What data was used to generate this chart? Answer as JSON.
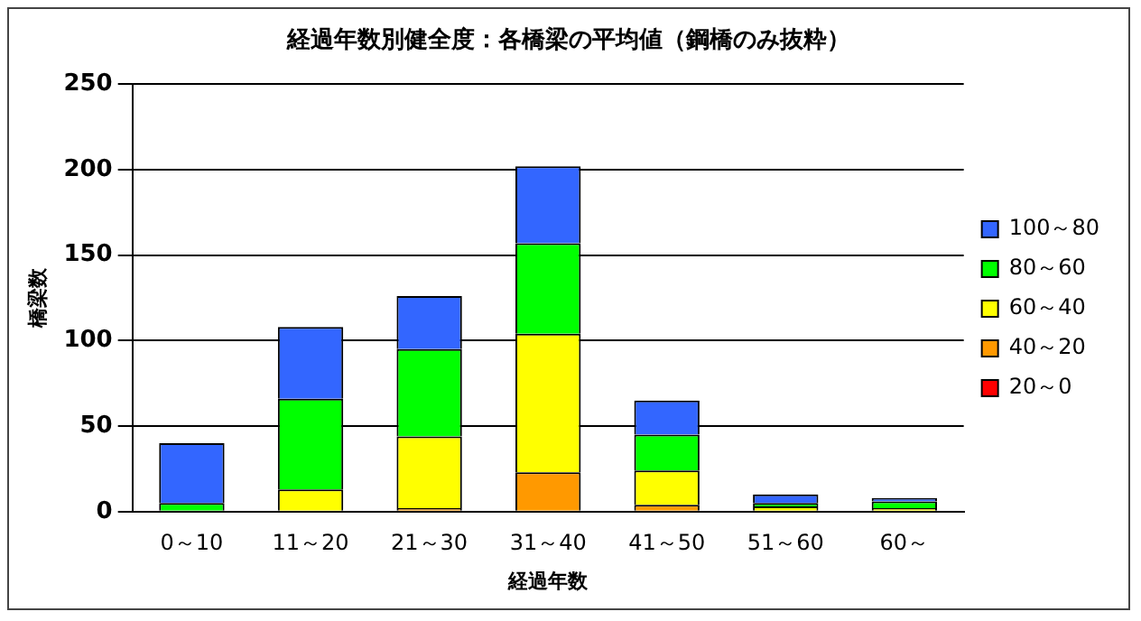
{
  "chart_data": {
    "type": "bar",
    "stacked": true,
    "title": "経過年数別健全度：各橋梁の平均値（鋼橋のみ抜粋）",
    "xlabel": "経過年数",
    "ylabel": "橋梁数",
    "categories": [
      "0～10",
      "11～20",
      "21～30",
      "31～40",
      "41～50",
      "51～60",
      "60～"
    ],
    "series": [
      {
        "name": "20～0",
        "color": "#ff0000",
        "values": [
          0,
          0,
          0,
          0,
          0,
          0,
          0
        ]
      },
      {
        "name": "40～20",
        "color": "#ff9900",
        "values": [
          0,
          0,
          2,
          23,
          4,
          0,
          0
        ]
      },
      {
        "name": "60～40",
        "color": "#ffff00",
        "values": [
          0,
          13,
          42,
          81,
          20,
          3,
          2
        ]
      },
      {
        "name": "80～60",
        "color": "#00ff00",
        "values": [
          5,
          53,
          51,
          53,
          21,
          2,
          4
        ]
      },
      {
        "name": "100～80",
        "color": "#3366ff",
        "values": [
          35,
          42,
          31,
          45,
          20,
          5,
          2
        ]
      }
    ],
    "ylim": [
      0,
      250
    ],
    "yticks": [
      0,
      50,
      100,
      150,
      200,
      250
    ],
    "grid": "y",
    "legend": "right"
  }
}
